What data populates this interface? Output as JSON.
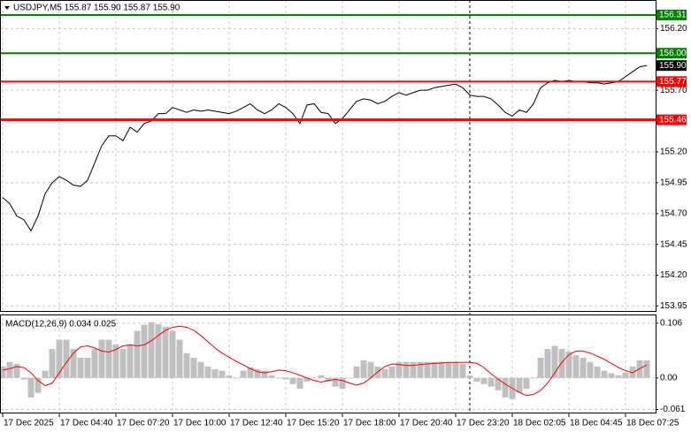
{
  "chart_data": [
    {
      "type": "line",
      "title": "USDJPY,M5  155.87 155.90 155.87 155.90",
      "ylim": [
        153.91,
        156.41
      ],
      "yticks": [
        {
          "value": 156.2,
          "label": "156.20"
        },
        {
          "value": 155.7,
          "label": "155.70"
        },
        {
          "value": 155.2,
          "label": "155.20"
        },
        154.95,
        {
          "value": 154.7,
          "label": "154.70"
        },
        154.45,
        {
          "value": 154.2,
          "label": "154.20"
        },
        153.95
      ],
      "grid": true,
      "levels": [
        {
          "value": 156.31,
          "color": "#008000"
        },
        {
          "value": 156.0,
          "label": "156.00",
          "color": "#008000"
        },
        {
          "value": 155.77,
          "color": "#ff0000"
        },
        {
          "value": 155.46,
          "color": "#ff0000"
        }
      ],
      "series": [
        {
          "name": "USDJPY",
          "color": "#000000",
          "values": [
            154.83,
            154.78,
            154.68,
            154.65,
            154.56,
            154.68,
            154.86,
            154.95,
            155.0,
            154.97,
            154.93,
            154.92,
            154.97,
            155.11,
            155.25,
            155.33,
            155.33,
            155.29,
            155.4,
            155.36,
            155.43,
            155.45,
            155.51,
            155.51,
            155.56,
            155.54,
            155.52,
            155.54,
            155.53,
            155.54,
            155.53,
            155.52,
            155.51,
            155.53,
            155.56,
            155.59,
            155.54,
            155.51,
            155.54,
            155.59,
            155.56,
            155.51,
            155.43,
            155.58,
            155.59,
            155.52,
            155.51,
            155.43,
            155.47,
            155.54,
            155.61,
            155.63,
            155.62,
            155.59,
            155.61,
            155.65,
            155.68,
            155.66,
            155.68,
            155.7,
            155.7,
            155.72,
            155.73,
            155.74,
            155.75,
            155.72,
            155.66,
            155.65,
            155.65,
            155.63,
            155.58,
            155.52,
            155.49,
            155.54,
            155.52,
            155.59,
            155.72,
            155.76,
            155.78,
            155.77,
            155.78,
            155.77,
            155.77,
            155.76,
            155.76,
            155.75,
            155.76,
            155.77,
            155.81,
            155.85,
            155.89,
            {
              "value": 155.9,
              "label": "155.90"
            }
          ]
        }
      ]
    },
    {
      "type": "macd",
      "title": "MACD(12,26,9) 0.034 0.025",
      "ylim": [
        -0.067,
        0.121
      ],
      "yticks": [
        0.106,
        {
          "value": 0,
          "label": "0.00"
        },
        -0.061
      ],
      "grid": true,
      "categories": [
        "17 Dec 2025",
        null,
        null,
        null,
        null,
        null,
        null,
        null,
        "17 Dec 04:40",
        null,
        null,
        null,
        null,
        null,
        null,
        null,
        "17 Dec 07:20",
        null,
        null,
        null,
        null,
        null,
        null,
        null,
        "17 Dec 10:00",
        null,
        null,
        null,
        null,
        null,
        null,
        null,
        "17 Dec 12:40",
        null,
        null,
        null,
        null,
        null,
        null,
        null,
        "17 Dec 15:20",
        null,
        null,
        null,
        null,
        null,
        null,
        null,
        "17 Dec 18:00",
        null,
        null,
        null,
        null,
        null,
        null,
        null,
        "17 Dec 20:40",
        null,
        null,
        null,
        null,
        null,
        null,
        null,
        "17 Dec 23:20",
        null,
        null,
        null,
        null,
        null,
        null,
        null,
        "18 Dec 02:05",
        null,
        null,
        null,
        null,
        null,
        null,
        null,
        "18 Dec 04:45",
        null,
        null,
        null,
        null,
        null,
        null,
        null,
        "18 Dec 07:25",
        null,
        null,
        null
      ],
      "series": [
        {
          "name": "MACD",
          "kind": "bar",
          "color": "#c0c0c0",
          "values": [
            0.022,
            0.031,
            0.027,
            -0.003,
            -0.038,
            -0.029,
            0.014,
            0.056,
            0.074,
            0.074,
            0.056,
            0.039,
            0.039,
            0.056,
            0.074,
            0.074,
            0.065,
            0.056,
            0.065,
            0.091,
            0.103,
            0.108,
            0.104,
            0.099,
            0.091,
            0.074,
            0.048,
            0.039,
            0.031,
            0.022,
            0.017,
            0.014,
            0.005,
            0,
            0.014,
            0.021,
            0.017,
            0.014,
            0.005,
            0,
            -0.003,
            -0.012,
            -0.021,
            -0.007,
            0,
            0.005,
            -0.007,
            -0.017,
            -0.021,
            0,
            0.022,
            0.034,
            0.031,
            0.022,
            0.017,
            0.022,
            0.031,
            0.031,
            0.031,
            0.031,
            0.031,
            0.031,
            0.031,
            0.031,
            0.031,
            0.027,
            0.005,
            -0.007,
            -0.012,
            -0.017,
            -0.024,
            -0.038,
            -0.041,
            -0.029,
            -0.021,
            0,
            0.039,
            0.056,
            0.062,
            0.056,
            0.051,
            0.044,
            0.039,
            0.031,
            0.022,
            0.014,
            0.009,
            0.005,
            0.01,
            0.022,
            0.034,
            0.034
          ]
        },
        {
          "name": "Signal",
          "kind": "line",
          "color": "#ff0000",
          "values": [
            0.015,
            0.018,
            0.022,
            0.02,
            0.01,
            -0.005,
            -0.015,
            -0.01,
            0.01,
            0.03,
            0.048,
            0.06,
            0.062,
            0.058,
            0.052,
            0.05,
            0.055,
            0.062,
            0.064,
            0.062,
            0.064,
            0.072,
            0.082,
            0.092,
            0.098,
            0.1,
            0.098,
            0.092,
            0.082,
            0.07,
            0.058,
            0.048,
            0.04,
            0.032,
            0.025,
            0.018,
            0.012,
            0.01,
            0.012,
            0.015,
            0.014,
            0.01,
            0.005,
            0.0,
            -0.005,
            -0.008,
            -0.005,
            -0.003,
            -0.005,
            -0.01,
            -0.014,
            -0.01,
            0.0,
            0.012,
            0.022,
            0.027,
            0.026,
            0.024,
            0.024,
            0.026,
            0.027,
            0.028,
            0.029,
            0.03,
            0.03,
            0.03,
            0.03,
            0.028,
            0.02,
            0.008,
            -0.002,
            -0.012,
            -0.02,
            -0.028,
            -0.034,
            -0.032,
            -0.024,
            -0.01,
            0.01,
            0.03,
            0.045,
            0.052,
            0.052,
            0.048,
            0.042,
            0.036,
            0.028,
            0.02,
            0.014,
            0.01,
            0.018,
            0.025
          ]
        }
      ]
    }
  ]
}
